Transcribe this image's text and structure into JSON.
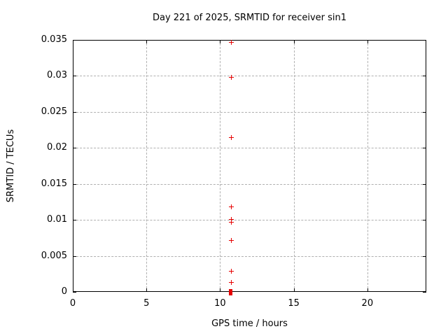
{
  "window": {
    "title_text": "Day 221 of 2025, SRMTID for receiver sin1"
  },
  "colors": {
    "points": "#e60000",
    "grid": "#b0b0b0",
    "axis": "#000000",
    "background": "#ffffff"
  },
  "chart_data": {
    "type": "scatter",
    "title": "Day 221 of 2025, SRMTID for receiver sin1",
    "xlabel": "GPS time / hours",
    "ylabel": "SRMTID / TECUs",
    "xlim": [
      0,
      24
    ],
    "ylim": [
      0,
      0.035
    ],
    "xticks": [
      0,
      5,
      10,
      15,
      20
    ],
    "xtick_labels": [
      "0",
      "5",
      "10",
      "15",
      "20"
    ],
    "yticks": [
      0,
      0.005,
      0.01,
      0.015,
      0.02,
      0.025,
      0.03,
      0.035
    ],
    "ytick_labels": [
      "0",
      "0.005",
      "0.01",
      "0.015",
      "0.02",
      "0.025",
      "0.03",
      "0.035"
    ],
    "grid": true,
    "legend": "none",
    "marker": "plus",
    "series": [
      {
        "name": "SRMTID",
        "marker": "plus",
        "color": "#e60000",
        "points": [
          [
            10.75,
            0.0347
          ],
          [
            10.75,
            0.0298
          ],
          [
            10.75,
            0.0215
          ],
          [
            10.75,
            0.0119
          ],
          [
            10.75,
            0.0101
          ],
          [
            10.75,
            0.0097
          ],
          [
            10.75,
            0.0072
          ],
          [
            10.75,
            0.0029
          ],
          [
            10.75,
            0.0014
          ]
        ]
      }
    ],
    "zero_cluster": {
      "x": 10.7,
      "y": 0.0,
      "marker": "dense-overlapping-points"
    }
  }
}
